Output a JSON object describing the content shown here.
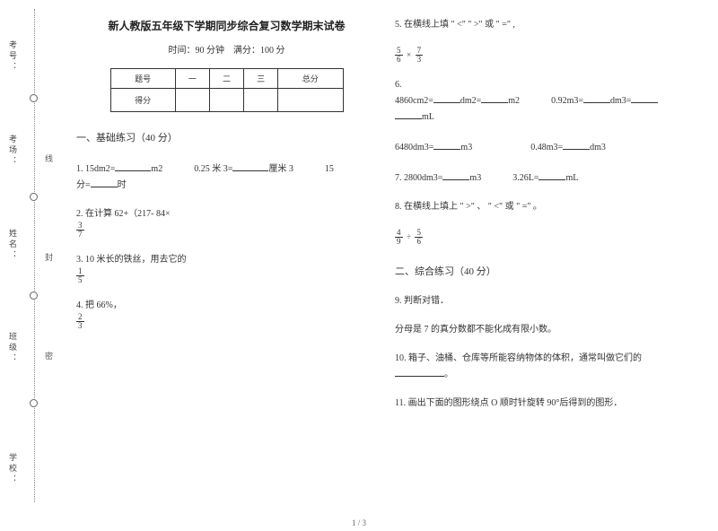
{
  "sidebar": {
    "labels": [
      "考号：",
      "考场：",
      "姓名：",
      "班级：",
      "学校："
    ],
    "mid_chars": [
      "线",
      "封",
      "密"
    ]
  },
  "header": {
    "title": "新人教版五年级下学期同步综合复习数学期末试卷",
    "subtitle_left": "时间：90 分钟",
    "subtitle_right": "满分：100 分"
  },
  "score_table": {
    "headers": [
      "题号",
      "一",
      "二",
      "三",
      "总分"
    ],
    "row_label": "得分"
  },
  "section1": {
    "heading": "一、基础练习（40 分）"
  },
  "q1": {
    "prefix": "1. 15dm2=",
    "unit1": "m2",
    "mid": "0.25 米 3=",
    "unit2": "厘米 3",
    "tail": "15",
    "line2a": "分=",
    "line2b": "时"
  },
  "q2": {
    "text": "2. 在计算 62+（217- 84×",
    "frac_n": "3",
    "frac_d": "7"
  },
  "q3": {
    "text": "3. 10 米长的铁丝，用去它的",
    "frac_n": "1",
    "frac_d": "5"
  },
  "q4": {
    "text": "4. 把 66%，",
    "frac_n": "2",
    "frac_d": "3"
  },
  "q5": {
    "text": "5. 在横线上填 \" <\" \" >\" 或 \" =\" ,",
    "f1_n": "5",
    "f1_d": "6",
    "op1": "×",
    "f2_n": "7",
    "f2_d": "3"
  },
  "q6": {
    "head": "6.",
    "l1a": "4860cm2=",
    "l1b": "dm2=",
    "l1c": "m2",
    "l1d": "0.92m3=",
    "l1e": "dm3=",
    "l2a": "mL",
    "l3a": "6480dm3=",
    "l3b": "m3",
    "l3c": "0.48m3=",
    "l3d": "dm3"
  },
  "q7": {
    "a": "7. 2800dm3=",
    "b": "m3",
    "c": "3.26L=",
    "d": "mL"
  },
  "q8": {
    "text": "8. 在横线上填上 \" >\" 、 \" <\" 或 \" =\" 。",
    "f1_n": "4",
    "f1_d": "9",
    "op": "÷",
    "f2_n": "5",
    "f2_d": "6"
  },
  "section2": {
    "heading": "二、综合练习（40 分）"
  },
  "q9": {
    "text": "9. 判断对错．",
    "sub": "分母是 7 的真分数都不能化成有限小数。"
  },
  "q10": {
    "text": "10. 箱子、油桶、仓库等所能容纳物体的体积，通常叫做它们的",
    "tail": "。"
  },
  "q11": {
    "text": "11. 画出下面的图形绕点 O 顺时针旋转 90°后得到的图形．"
  },
  "footer": {
    "page": "1 / 3"
  }
}
